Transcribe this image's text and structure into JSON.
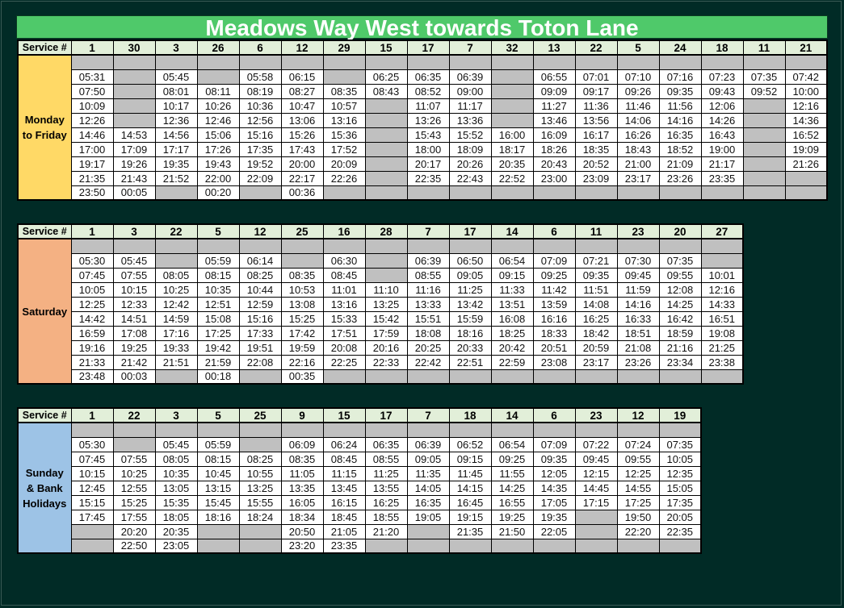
{
  "title": "Meadows Way West towards Toton Lane",
  "colors": {
    "title_bar": "#4fc96a",
    "header": "#e2efd9",
    "empty_cell": "#c0c0c0",
    "background": "#012b26"
  },
  "tables": [
    {
      "label": "Monday to Friday",
      "label_lines": [
        "Monday",
        "to Friday"
      ],
      "label_color": "#ffd966",
      "header_label": "Service #",
      "services": [
        {
          "service": "1",
          "times": [
            "05:31",
            "07:50",
            "10:09",
            "12:26",
            "14:46",
            "17:00",
            "19:17",
            "21:35",
            "23:50"
          ]
        },
        {
          "service": "30",
          "times": [
            "",
            "",
            "",
            "",
            "14:53",
            "17:09",
            "19:26",
            "21:43",
            "00:05"
          ]
        },
        {
          "service": "3",
          "times": [
            "05:45",
            "08:01",
            "10:17",
            "12:36",
            "14:56",
            "17:17",
            "19:35",
            "21:52",
            ""
          ]
        },
        {
          "service": "26",
          "times": [
            "",
            "08:11",
            "10:26",
            "12:46",
            "15:06",
            "17:26",
            "19:43",
            "22:00",
            "00:20"
          ]
        },
        {
          "service": "6",
          "times": [
            "05:58",
            "08:19",
            "10:36",
            "12:56",
            "15:16",
            "17:35",
            "19:52",
            "22:09",
            ""
          ]
        },
        {
          "service": "12",
          "times": [
            "06:15",
            "08:27",
            "10:47",
            "13:06",
            "15:26",
            "17:43",
            "20:00",
            "22:17",
            "00:36"
          ]
        },
        {
          "service": "29",
          "times": [
            "",
            "08:35",
            "10:57",
            "13:16",
            "15:36",
            "17:52",
            "20:09",
            "22:26",
            ""
          ]
        },
        {
          "service": "15",
          "times": [
            "06:25",
            "08:43",
            "",
            "",
            "",
            "",
            "",
            "",
            ""
          ]
        },
        {
          "service": "17",
          "times": [
            "06:35",
            "08:52",
            "11:07",
            "13:26",
            "15:43",
            "18:00",
            "20:17",
            "22:35",
            ""
          ]
        },
        {
          "service": "7",
          "times": [
            "06:39",
            "09:00",
            "11:17",
            "13:36",
            "15:52",
            "18:09",
            "20:26",
            "22:43",
            ""
          ]
        },
        {
          "service": "32",
          "times": [
            "",
            "",
            "",
            "",
            "16:00",
            "18:17",
            "20:35",
            "22:52",
            ""
          ]
        },
        {
          "service": "13",
          "times": [
            "06:55",
            "09:09",
            "11:27",
            "13:46",
            "16:09",
            "18:26",
            "20:43",
            "23:00",
            ""
          ]
        },
        {
          "service": "22",
          "times": [
            "07:01",
            "09:17",
            "11:36",
            "13:56",
            "16:17",
            "18:35",
            "20:52",
            "23:09",
            ""
          ]
        },
        {
          "service": "5",
          "times": [
            "07:10",
            "09:26",
            "11:46",
            "14:06",
            "16:26",
            "18:43",
            "21:00",
            "23:17",
            ""
          ]
        },
        {
          "service": "24",
          "times": [
            "07:16",
            "09:35",
            "11:56",
            "14:16",
            "16:35",
            "18:52",
            "21:09",
            "23:26",
            ""
          ]
        },
        {
          "service": "18",
          "times": [
            "07:23",
            "09:43",
            "12:06",
            "14:26",
            "16:43",
            "19:00",
            "21:17",
            "23:35",
            ""
          ]
        },
        {
          "service": "11",
          "times": [
            "07:35",
            "09:52",
            "",
            "",
            "",
            "",
            "",
            "",
            ""
          ]
        },
        {
          "service": "21",
          "times": [
            "07:42",
            "10:00",
            "12:16",
            "14:36",
            "16:52",
            "19:09",
            "21:26",
            "",
            ""
          ]
        }
      ]
    },
    {
      "label": "Saturday",
      "label_lines": [
        "Saturday"
      ],
      "label_color": "#f4b183",
      "header_label": "Service #",
      "services": [
        {
          "service": "1",
          "times": [
            "05:30",
            "07:45",
            "10:05",
            "12:25",
            "14:42",
            "16:59",
            "19:16",
            "21:33",
            "23:48"
          ]
        },
        {
          "service": "3",
          "times": [
            "05:45",
            "07:55",
            "10:15",
            "12:33",
            "14:51",
            "17:08",
            "19:25",
            "21:42",
            "00:03"
          ]
        },
        {
          "service": "22",
          "times": [
            "",
            "08:05",
            "10:25",
            "12:42",
            "14:59",
            "17:16",
            "19:33",
            "21:51",
            ""
          ]
        },
        {
          "service": "5",
          "times": [
            "05:59",
            "08:15",
            "10:35",
            "12:51",
            "15:08",
            "17:25",
            "19:42",
            "21:59",
            "00:18"
          ]
        },
        {
          "service": "12",
          "times": [
            "06:14",
            "08:25",
            "10:44",
            "12:59",
            "15:16",
            "17:33",
            "19:51",
            "22:08",
            ""
          ]
        },
        {
          "service": "25",
          "times": [
            "",
            "08:35",
            "10:53",
            "13:08",
            "15:25",
            "17:42",
            "19:59",
            "22:16",
            "00:35"
          ]
        },
        {
          "service": "16",
          "times": [
            "06:30",
            "08:45",
            "11:01",
            "13:16",
            "15:33",
            "17:51",
            "20:08",
            "22:25",
            ""
          ]
        },
        {
          "service": "28",
          "times": [
            "",
            "",
            "11:10",
            "13:25",
            "15:42",
            "17:59",
            "20:16",
            "22:33",
            ""
          ]
        },
        {
          "service": "7",
          "times": [
            "06:39",
            "08:55",
            "11:16",
            "13:33",
            "15:51",
            "18:08",
            "20:25",
            "22:42",
            ""
          ]
        },
        {
          "service": "17",
          "times": [
            "06:50",
            "09:05",
            "11:25",
            "13:42",
            "15:59",
            "18:16",
            "20:33",
            "22:51",
            ""
          ]
        },
        {
          "service": "14",
          "times": [
            "06:54",
            "09:15",
            "11:33",
            "13:51",
            "16:08",
            "18:25",
            "20:42",
            "22:59",
            ""
          ]
        },
        {
          "service": "6",
          "times": [
            "07:09",
            "09:25",
            "11:42",
            "13:59",
            "16:16",
            "18:33",
            "20:51",
            "23:08",
            ""
          ]
        },
        {
          "service": "11",
          "times": [
            "07:21",
            "09:35",
            "11:51",
            "14:08",
            "16:25",
            "18:42",
            "20:59",
            "23:17",
            ""
          ]
        },
        {
          "service": "23",
          "times": [
            "07:30",
            "09:45",
            "11:59",
            "14:16",
            "16:33",
            "18:51",
            "21:08",
            "23:26",
            ""
          ]
        },
        {
          "service": "20",
          "times": [
            "07:35",
            "09:55",
            "12:08",
            "14:25",
            "16:42",
            "18:59",
            "21:16",
            "23:34",
            ""
          ]
        },
        {
          "service": "27",
          "times": [
            "",
            "10:01",
            "12:16",
            "14:33",
            "16:51",
            "19:08",
            "21:25",
            "23:38",
            ""
          ]
        }
      ]
    },
    {
      "label": "Sunday & Bank Holidays",
      "label_lines": [
        "Sunday",
        "& Bank",
        "Holidays"
      ],
      "label_color": "#9dc3e6",
      "header_label": "Service #",
      "services": [
        {
          "service": "1",
          "times": [
            "05:30",
            "07:45",
            "10:15",
            "12:45",
            "15:15",
            "17:45",
            "",
            ""
          ]
        },
        {
          "service": "22",
          "times": [
            "",
            "07:55",
            "10:25",
            "12:55",
            "15:25",
            "17:55",
            "20:20",
            "22:50"
          ]
        },
        {
          "service": "3",
          "times": [
            "05:45",
            "08:05",
            "10:35",
            "13:05",
            "15:35",
            "18:05",
            "20:35",
            "23:05"
          ]
        },
        {
          "service": "5",
          "times": [
            "05:59",
            "08:15",
            "10:45",
            "13:15",
            "15:45",
            "18:16",
            "",
            ""
          ]
        },
        {
          "service": "25",
          "times": [
            "",
            "08:25",
            "10:55",
            "13:25",
            "15:55",
            "18:24",
            "",
            ""
          ]
        },
        {
          "service": "9",
          "times": [
            "06:09",
            "08:35",
            "11:05",
            "13:35",
            "16:05",
            "18:34",
            "20:50",
            "23:20"
          ]
        },
        {
          "service": "15",
          "times": [
            "06:24",
            "08:45",
            "11:15",
            "13:45",
            "16:15",
            "18:45",
            "21:05",
            "23:35"
          ]
        },
        {
          "service": "17",
          "times": [
            "06:35",
            "08:55",
            "11:25",
            "13:55",
            "16:25",
            "18:55",
            "21:20",
            ""
          ]
        },
        {
          "service": "7",
          "times": [
            "06:39",
            "09:05",
            "11:35",
            "14:05",
            "16:35",
            "19:05",
            "",
            ""
          ]
        },
        {
          "service": "18",
          "times": [
            "06:52",
            "09:15",
            "11:45",
            "14:15",
            "16:45",
            "19:15",
            "21:35",
            ""
          ]
        },
        {
          "service": "14",
          "times": [
            "06:54",
            "09:25",
            "11:55",
            "14:25",
            "16:55",
            "19:25",
            "21:50",
            ""
          ]
        },
        {
          "service": "6",
          "times": [
            "07:09",
            "09:35",
            "12:05",
            "14:35",
            "17:05",
            "19:35",
            "22:05",
            ""
          ]
        },
        {
          "service": "23",
          "times": [
            "07:22",
            "09:45",
            "12:15",
            "14:45",
            "17:15",
            "",
            "",
            ""
          ]
        },
        {
          "service": "12",
          "times": [
            "07:24",
            "09:55",
            "12:25",
            "14:55",
            "17:25",
            "19:50",
            "22:20",
            ""
          ]
        },
        {
          "service": "19",
          "times": [
            "07:35",
            "10:05",
            "12:35",
            "15:05",
            "17:35",
            "20:05",
            "22:35",
            ""
          ]
        }
      ]
    }
  ]
}
